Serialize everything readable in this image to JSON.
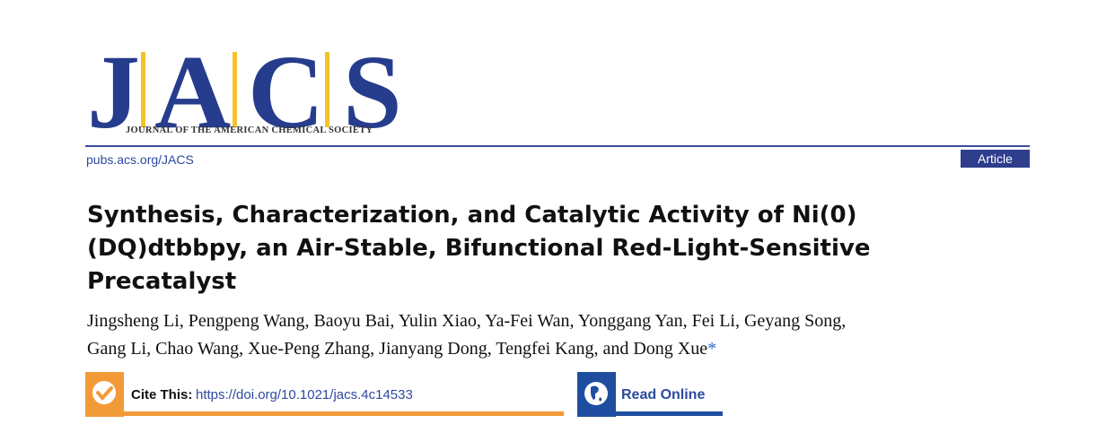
{
  "logo": {
    "letters": [
      "J",
      "A",
      "C",
      "S"
    ],
    "subtitle": "JOURNAL OF THE AMERICAN CHEMICAL SOCIETY",
    "colors": {
      "letters": "#263c8d",
      "bars": "#f5c22a"
    }
  },
  "header": {
    "url": "pubs.acs.org/JACS",
    "article_type": "Article"
  },
  "article": {
    "title": "Synthesis, Characterization, and Catalytic Activity of Ni(0)(DQ)dtbbpy, an Air-Stable, Bifunctional Red-Light-Sensitive Precatalyst",
    "title_lines": [
      "Synthesis, Characterization, and Catalytic Activity of Ni(0)",
      "(DQ)dtbbpy, an Air-Stable, Bifunctional Red-Light-Sensitive",
      "Precatalyst"
    ],
    "authors_line1": "Jingsheng Li, Pengpeng Wang, Baoyu Bai, Yulin Xiao, Ya-Fei Wan, Yonggang Yan, Fei Li, Geyang Song,",
    "authors_line2": "Gang Li, Chao Wang, Xue-Peng Zhang, Jianyang Dong, Tengfei Kang, and Dong Xue",
    "corresponding_mark": "*"
  },
  "cite": {
    "label": "Cite This:",
    "doi": "https://doi.org/10.1021/jacs.4c14533",
    "icon": "check-circle-icon",
    "color": "#f29a37"
  },
  "read_online": {
    "label": "Read Online",
    "icon": "globe-icon",
    "color": "#1f4ea0"
  }
}
